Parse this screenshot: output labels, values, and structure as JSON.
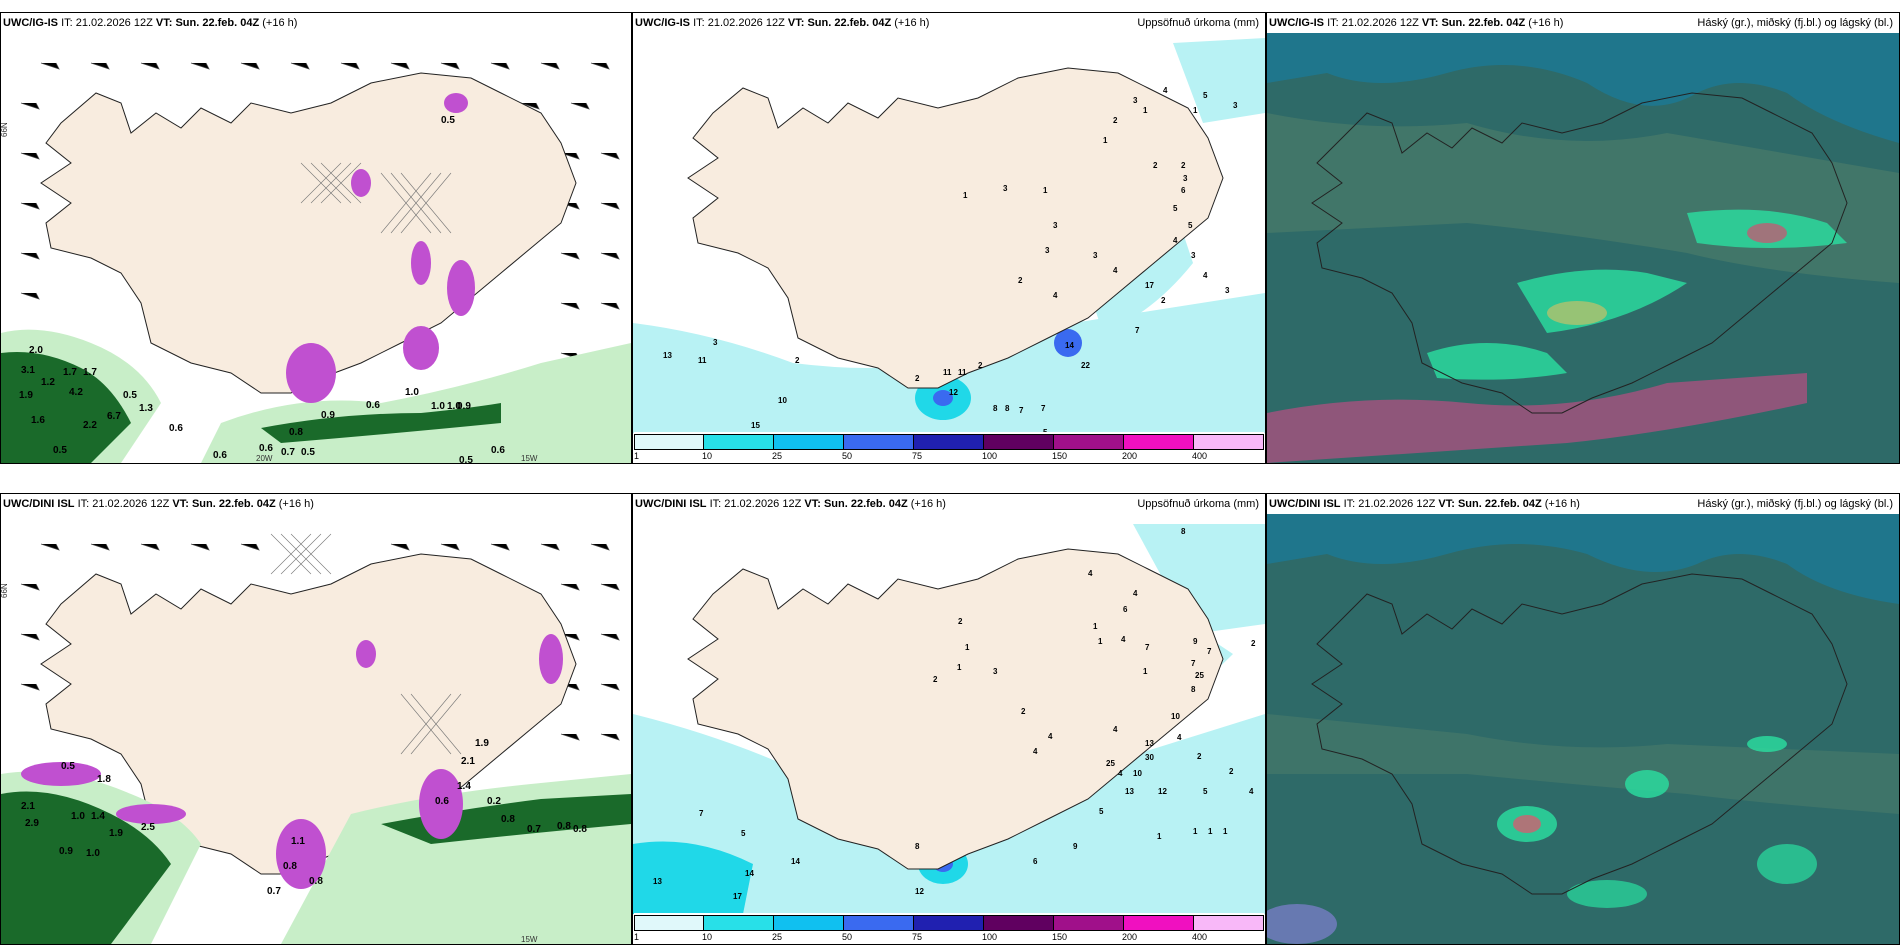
{
  "panels": {
    "p1": {
      "model": "UWC/IG-IS",
      "it_label": "IT:",
      "it": "21.02.2026 12Z",
      "vt_label": "VT:",
      "vt": "Sun. 22.feb. 04Z",
      "lead": "(+16 h)",
      "right_title": ""
    },
    "p2": {
      "model": "UWC/IG-IS",
      "it_label": "IT:",
      "it": "21.02.2026 12Z",
      "vt_label": "VT:",
      "vt": "Sun. 22.feb. 04Z",
      "lead": "(+16 h)",
      "right_title": "Uppsöfnuð úrkoma (mm)"
    },
    "p3": {
      "model": "UWC/IG-IS",
      "it_label": "IT:",
      "it": "21.02.2026 12Z",
      "vt_label": "VT:",
      "vt": "Sun. 22.feb. 04Z",
      "lead": "(+16 h)",
      "right_title": "Háský (gr.), miðský (fj.bl.) og lágský (bl.)"
    },
    "p4": {
      "model": "UWC/DINI ISL",
      "it_label": "IT:",
      "it": "21.02.2026 12Z",
      "vt_label": "VT:",
      "vt": "Sun. 22.feb. 04Z",
      "lead": "(+16 h)",
      "right_title": ""
    },
    "p5": {
      "model": "UWC/DINI ISL",
      "it_label": "IT:",
      "it": "21.02.2026 12Z",
      "vt_label": "VT:",
      "vt": "Sun. 22.feb. 04Z",
      "lead": "(+16 h)",
      "right_title": "Uppsöfnuð úrkoma (mm)"
    },
    "p6": {
      "model": "UWC/DINI ISL",
      "it_label": "IT:",
      "it": "21.02.2026 12Z",
      "vt_label": "VT:",
      "vt": "Sun. 22.feb. 04Z",
      "lead": "(+16 h)",
      "right_title": "Háský (gr.), miðský (fj.bl.) og lágský (bl.)"
    }
  },
  "axis_labels": {
    "lat": "66N",
    "lon1": "20W",
    "lon2": "15W"
  },
  "colorbar": {
    "ticks": [
      "1",
      "10",
      "25",
      "50",
      "75",
      "100",
      "150",
      "200",
      "400"
    ],
    "colors": [
      "#e0f8fa",
      "#28e0e8",
      "#10c0f0",
      "#3a6af0",
      "#2020b0",
      "#600060",
      "#a0108a",
      "#f010c0",
      "#f8b8f8"
    ]
  },
  "colors": {
    "land": "#f8ecdf",
    "precip_light": "#b8f2f4",
    "precip_mid": "#20d8e8",
    "cloud_bg": "#2e6a68",
    "cloud_sea": "#1e7890",
    "green_light": "#c8eec8",
    "green_dark": "#1a6a2a",
    "purple": "#c050d0"
  },
  "labels": {
    "p1": [
      "2.0",
      "3.1",
      "1.7",
      "1.7",
      "1.2",
      "4.2",
      "1.9",
      "0.5",
      "6.7",
      "1.6",
      "2.2",
      "0.5",
      "1.3",
      "0.6",
      "0.6",
      "0.6",
      "0.7",
      "0.5",
      "0.8",
      "0.6",
      "1.0",
      "1.0",
      "0.9",
      "0.5",
      "0.9",
      "1.0",
      "0.6",
      "0.5"
    ],
    "p2": [
      "3",
      "13",
      "11",
      "2",
      "10",
      "15",
      "10",
      "2",
      "11",
      "11",
      "12",
      "8",
      "8",
      "7",
      "7",
      "5",
      "5",
      "2",
      "2",
      "4",
      "14",
      "22",
      "7",
      "2",
      "17",
      "3",
      "3",
      "4",
      "1",
      "1",
      "3",
      "3",
      "2",
      "2",
      "3",
      "6",
      "5",
      "5",
      "4",
      "3",
      "4",
      "3",
      "1",
      "2",
      "1",
      "3",
      "4",
      "5",
      "1",
      "3"
    ],
    "p4": [
      "0.5",
      "1.8",
      "2.1",
      "2.9",
      "1.0",
      "1.4",
      "1.9",
      "2.5",
      "0.9",
      "1.0",
      "1.1",
      "0.8",
      "0.7",
      "0.8",
      "0.6",
      "1.4",
      "2.1",
      "1.9",
      "0.2",
      "0.8",
      "0.7",
      "0.8",
      "0.8"
    ],
    "p5": [
      "7",
      "5",
      "13",
      "14",
      "14",
      "17",
      "12",
      "8",
      "6",
      "9",
      "5",
      "2",
      "4",
      "4",
      "4",
      "25",
      "10",
      "13",
      "12",
      "30",
      "13",
      "4",
      "2",
      "2",
      "4",
      "5",
      "1",
      "1",
      "1",
      "1",
      "4",
      "10",
      "7",
      "9",
      "25",
      "8",
      "7",
      "2",
      "4",
      "6",
      "1",
      "1",
      "7",
      "1",
      "3",
      "2",
      "1",
      "1",
      "2",
      "8",
      "4",
      "4"
    ]
  }
}
